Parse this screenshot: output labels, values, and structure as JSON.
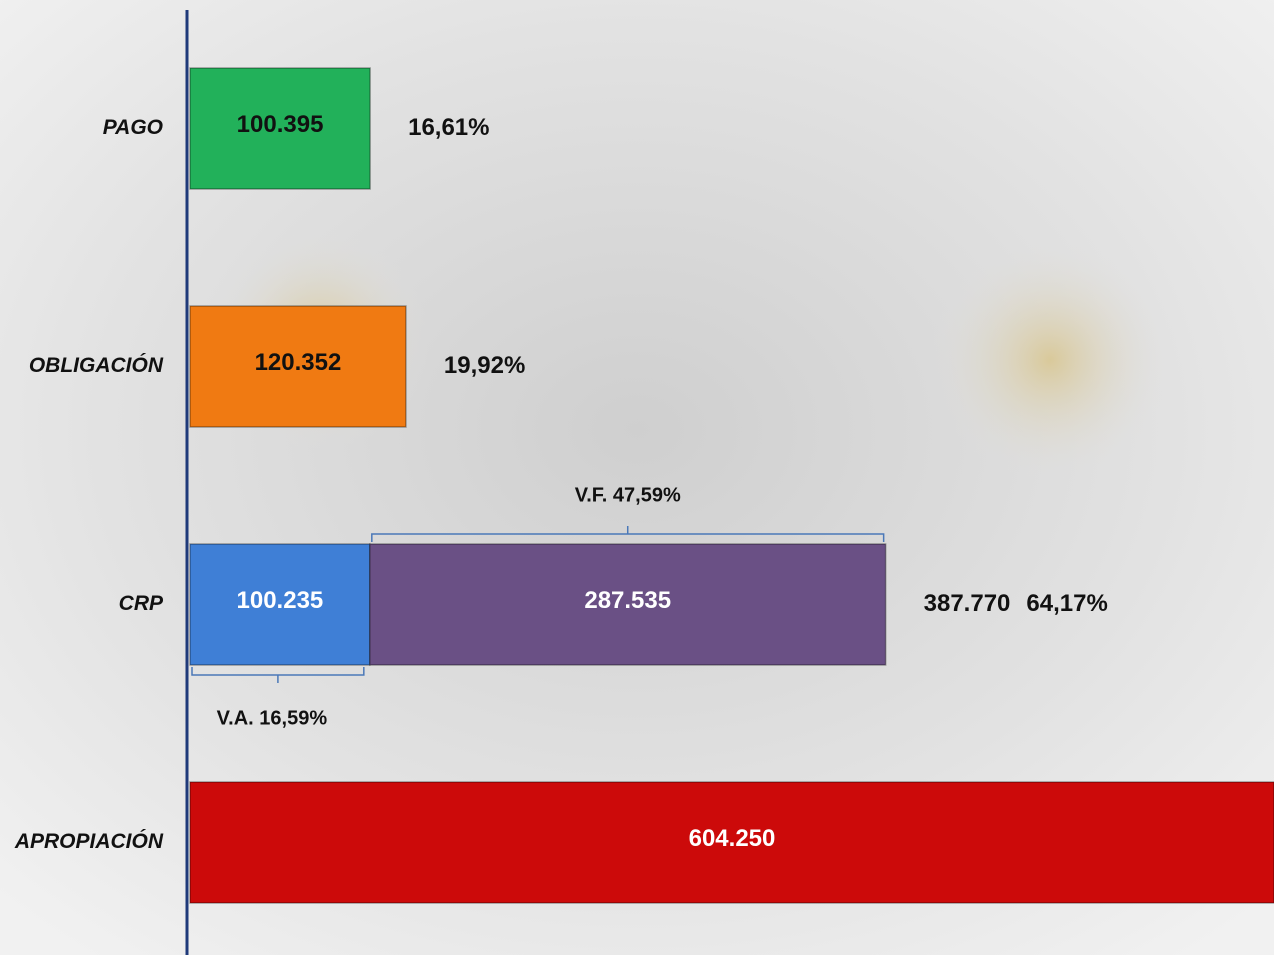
{
  "chart_data": {
    "type": "bar",
    "orientation": "horizontal",
    "stacked": true,
    "categories": [
      "PAGO",
      "OBLIGACIÓN",
      "CRP",
      "APROPIACIÓN"
    ],
    "xlim": [
      0,
      604250
    ],
    "series": [
      {
        "colors": [
          "#22b15a",
          "#f07a12",
          "#3f7fd6",
          "#cc0a0a"
        ],
        "label_colors": [
          "#111111",
          "#111111",
          "#ffffff",
          "#ffffff"
        ],
        "values": [
          100395,
          120352,
          100235,
          604250
        ],
        "value_labels": [
          "100.395",
          "120.352",
          "100.235",
          "604.250"
        ]
      },
      {
        "color": "#6a5085",
        "label_colors": [
          null,
          null,
          "#ffffff",
          null
        ],
        "values": [
          null,
          null,
          287535,
          null
        ],
        "value_labels": [
          null,
          null,
          "287.535",
          null
        ]
      }
    ],
    "end_labels": [
      [
        "16,61%"
      ],
      [
        "19,92%"
      ],
      [
        "387.770",
        "64,17%"
      ],
      null
    ],
    "upper_brace": "V.F. 47,59%",
    "lower_brace": "V.A. 16,59%"
  }
}
